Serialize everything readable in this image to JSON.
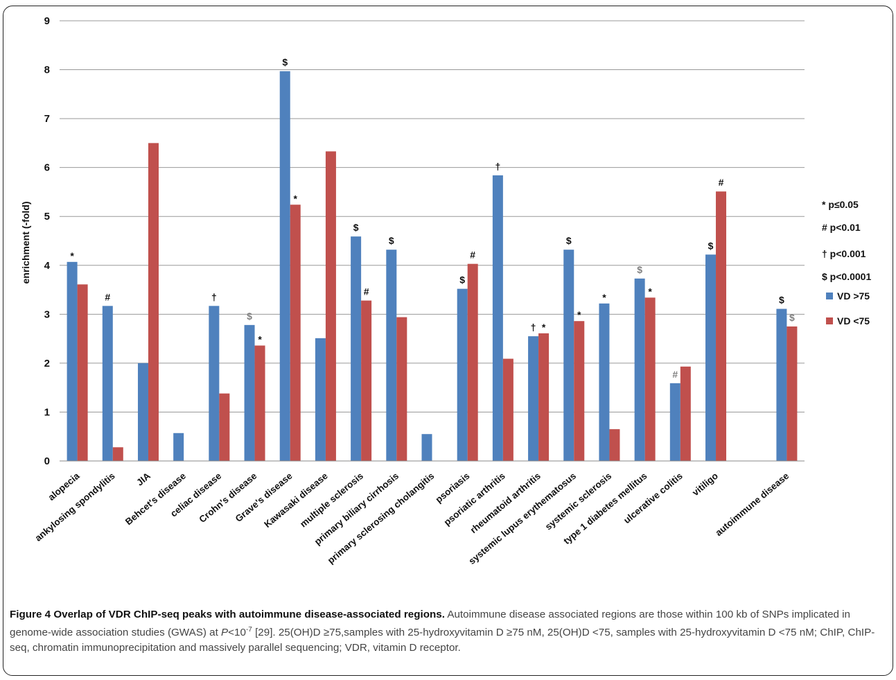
{
  "chart_data": {
    "type": "bar",
    "ylabel": "enrichment (-fold)",
    "ylim": [
      0,
      9
    ],
    "yticks": [
      "0",
      "1",
      "2",
      "3",
      "4",
      "5",
      "6",
      "7",
      "8",
      "9"
    ],
    "grid": true,
    "categories": [
      "alopecia",
      "ankylosing spondylitis",
      "JIA",
      "Behcet's disease",
      "celiac disease",
      "Crohn's disease",
      "Grave's disease",
      "Kawasaki disease",
      "multiple sclerosis",
      "primary biliary cirrhosis",
      "primary sclerosing cholangitis",
      "psoriasis",
      "psoriatic arthritis",
      "rheumatoid arthritis",
      "systemic lupus erythematosus",
      "systemic sclerosis",
      "type 1 diabetes mellitus",
      "ulcerative colitis",
      "vitiligo",
      "",
      "autoimmune disease"
    ],
    "series": [
      {
        "name": "VD >75",
        "color": "#4f81bd",
        "values": [
          4.07,
          3.17,
          2.0,
          0.57,
          3.17,
          2.78,
          7.97,
          2.51,
          4.59,
          4.32,
          0.55,
          3.52,
          5.84,
          2.55,
          4.32,
          3.22,
          3.73,
          1.59,
          4.22,
          null,
          3.11
        ],
        "marks": [
          "*",
          "#",
          "",
          "",
          "†",
          "$",
          "$",
          "",
          "$",
          "$",
          "",
          "$",
          "†",
          "†",
          "$",
          "*",
          "$",
          "#",
          "$",
          "",
          "$"
        ],
        "mark_gray": [
          false,
          false,
          false,
          false,
          false,
          true,
          false,
          false,
          false,
          false,
          false,
          false,
          false,
          false,
          false,
          false,
          true,
          true,
          false,
          false,
          false
        ]
      },
      {
        "name": "VD <75",
        "color": "#c0504d",
        "values": [
          3.61,
          0.28,
          6.5,
          null,
          1.38,
          2.36,
          5.24,
          6.33,
          3.28,
          2.94,
          null,
          4.03,
          2.09,
          2.61,
          2.86,
          0.65,
          3.34,
          1.93,
          5.51,
          null,
          2.75
        ],
        "marks": [
          "",
          "",
          "",
          "",
          "",
          "*",
          "*",
          "",
          "#",
          "",
          "",
          "#",
          "",
          "*",
          "*",
          "",
          "*",
          "",
          "#",
          "",
          "$"
        ],
        "mark_gray": [
          false,
          false,
          false,
          false,
          false,
          false,
          false,
          false,
          false,
          false,
          false,
          false,
          false,
          false,
          false,
          false,
          false,
          false,
          false,
          false,
          true
        ]
      }
    ],
    "legend": {
      "position": "right",
      "significance": [
        "* p≤0.05",
        "# p<0.01",
        "† p<0.001",
        "$ p<0.0001"
      ],
      "series": [
        "VD >75",
        "VD <75"
      ]
    }
  },
  "caption": {
    "label": "Figure 4",
    "title": "Overlap of VDR ChIP-seq peaks with autoimmune disease-associated regions.",
    "text_1": "Autoimmune disease associated regions are those within 100 kb of SNPs implicated in genome-wide association studies (GWAS) at",
    "p_italic": "P",
    "p_rest": "<10",
    "p_exp": "-7",
    "text_2": "[29]. 25(OH)D ≥75,samples with 25-hydroxyvitamin D ≥75 nM, 25(OH)D <75, samples with 25-hydroxyvitamin D <75 nM; ChIP, ChIP-seq, chromatin immunoprecipitation and massively parallel sequencing; VDR, vitamin D receptor."
  }
}
